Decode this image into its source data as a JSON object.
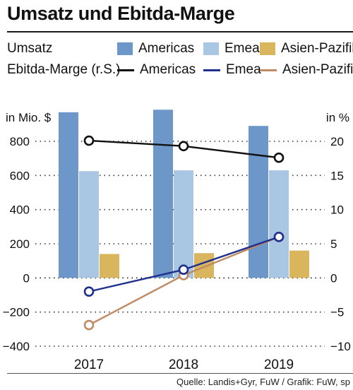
{
  "title": "Umsatz und Ebitda-Marge",
  "legend": {
    "bars_label": "Umsatz",
    "lines_label": "Ebitda-Marge (r.S.)",
    "bar_items": [
      "Americas",
      "Emea",
      "Asien-Pazifik"
    ],
    "line_items": [
      "Americas",
      "Emea",
      "Asien-Pazifik"
    ]
  },
  "source": "Quelle: Landis+Gyr, FuW / Grafik: FuW, sp",
  "colors": {
    "bar_americas": "#6d96c9",
    "bar_emea": "#a9c6e3",
    "bar_asia": "#d9b55d",
    "line_americas": "#111111",
    "line_emea": "#1f2f8c",
    "line_asia": "#c08a62"
  },
  "chart_data": {
    "type": "bar+line",
    "categories": [
      "2017",
      "2018",
      "2019"
    ],
    "y_left_label": "in Mio. $",
    "y_right_label": "in %",
    "ylim_left": [
      -400,
      800
    ],
    "yticks_left": [
      -400,
      -200,
      0,
      200,
      400,
      600,
      800
    ],
    "ylim_right": [
      -10,
      20
    ],
    "yticks_right": [
      -10,
      -5,
      0,
      5,
      10,
      15,
      20
    ],
    "grid": "dotted",
    "bar_series": [
      {
        "name": "Americas",
        "values": [
          970,
          985,
          890
        ]
      },
      {
        "name": "Emea",
        "values": [
          625,
          630,
          630
        ]
      },
      {
        "name": "Asien-Pazifik",
        "values": [
          140,
          145,
          160
        ]
      }
    ],
    "line_series": [
      {
        "name": "Americas",
        "values": [
          20.1,
          19.3,
          17.6
        ]
      },
      {
        "name": "Emea",
        "values": [
          -2.0,
          1.2,
          6.0
        ]
      },
      {
        "name": "Asien-Pazifik",
        "values": [
          -6.9,
          0.4,
          6.0
        ]
      }
    ]
  }
}
